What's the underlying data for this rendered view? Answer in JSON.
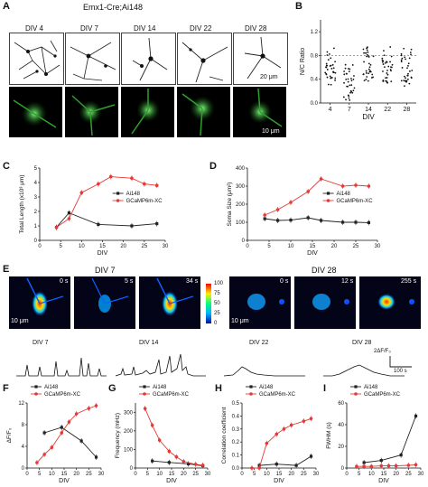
{
  "panels": {
    "A": {
      "letter": "A",
      "title": "Emx1-Cre;Ai148",
      "div_labels": [
        "DIV 4",
        "DIV 7",
        "DIV 14",
        "DIV 22",
        "DIV 28"
      ],
      "scale_top": "20 μm",
      "scale_bottom": "10 μm"
    },
    "B": {
      "letter": "B"
    },
    "C": {
      "letter": "C"
    },
    "D": {
      "letter": "D"
    },
    "E": {
      "letter": "E",
      "div7": "DIV 7",
      "div28": "DIV 28",
      "times7": [
        "0 s",
        "5 s",
        "34 s"
      ],
      "times28": [
        "0 s",
        "12 s",
        "255 s"
      ],
      "colorbar_ticks": [
        "100",
        "75",
        "50",
        "25",
        "0"
      ],
      "scale": "10 μm",
      "trace_labels": [
        "DIV 7",
        "DIV 14",
        "DIV 22",
        "DIV 28"
      ],
      "trace_scale_y": "2ΔF/F₀",
      "trace_scale_x": "100 s"
    },
    "F": {
      "letter": "F"
    },
    "G": {
      "letter": "G"
    },
    "H": {
      "letter": "H"
    },
    "I": {
      "letter": "I"
    }
  },
  "chart_data": [
    {
      "id": "B",
      "type": "scatter",
      "ylabel": "N/C Ratio",
      "xlabel": "DIV",
      "categories": [
        "4",
        "7",
        "14",
        "22",
        "28"
      ],
      "yticks": [
        "0.0",
        "0.4",
        "0.8",
        "1.2"
      ],
      "ylim": [
        0,
        1.4
      ],
      "reference_line": 0.8
    },
    {
      "id": "C",
      "type": "line",
      "xlabel": "DIV",
      "ylabel": "Total Length (x10³ μm)",
      "xlim": [
        0,
        30
      ],
      "ylim": [
        0,
        5
      ],
      "xticks": [
        "0",
        "5",
        "10",
        "15",
        "20",
        "25",
        "30"
      ],
      "yticks": [
        "0",
        "1",
        "2",
        "3",
        "4",
        "5"
      ],
      "legend": [
        "Ai148",
        "GCaMP6m-X_C"
      ],
      "series": [
        {
          "name": "Ai148",
          "color": "#222222",
          "x": [
            4,
            7,
            14,
            22,
            28
          ],
          "y": [
            0.9,
            1.9,
            1.1,
            1.0,
            1.15
          ]
        },
        {
          "name": "GCaMP6m-X_C",
          "color": "#e53935",
          "x": [
            4,
            7,
            10,
            14,
            17,
            22,
            25,
            28
          ],
          "y": [
            0.9,
            1.5,
            3.3,
            3.9,
            4.4,
            4.3,
            3.9,
            3.8
          ]
        }
      ]
    },
    {
      "id": "D",
      "type": "line",
      "xlabel": "DIV",
      "ylabel": "Soma Size (μm²)",
      "xlim": [
        0,
        30
      ],
      "ylim": [
        0,
        400
      ],
      "xticks": [
        "0",
        "5",
        "10",
        "15",
        "20",
        "25",
        "30"
      ],
      "yticks": [
        "0",
        "100",
        "200",
        "300",
        "400"
      ],
      "legend": [
        "Ai148",
        "GCaMP6m-X_C"
      ],
      "series": [
        {
          "name": "Ai148",
          "color": "#222222",
          "x": [
            4,
            7,
            10,
            14,
            17,
            22,
            25,
            28
          ],
          "y": [
            120,
            110,
            112,
            125,
            110,
            100,
            100,
            98
          ]
        },
        {
          "name": "GCaMP6m-X_C",
          "color": "#e53935",
          "x": [
            4,
            7,
            10,
            14,
            17,
            22,
            25,
            28
          ],
          "y": [
            140,
            170,
            210,
            270,
            340,
            300,
            305,
            300
          ]
        }
      ]
    },
    {
      "id": "F",
      "type": "line",
      "xlabel": "DIV",
      "ylabel": "ΔF/F₀",
      "xlim": [
        0,
        30
      ],
      "ylim": [
        0,
        12
      ],
      "xticks": [
        "0",
        "5",
        "10",
        "15",
        "20",
        "25",
        "30"
      ],
      "yticks": [
        "0",
        "4",
        "8",
        "12"
      ],
      "legend": [
        "Ai148",
        "GCaMP6m-X_C"
      ],
      "series": [
        {
          "name": "Ai148",
          "color": "#222222",
          "x": [
            7,
            14,
            22,
            28
          ],
          "y": [
            6.5,
            7.5,
            5.0,
            2.0
          ]
        },
        {
          "name": "GCaMP6m-X_C",
          "color": "#e53935",
          "x": [
            4,
            7,
            10,
            14,
            17,
            20,
            25,
            28
          ],
          "y": [
            1.0,
            2.5,
            3.8,
            6.5,
            8.5,
            10.0,
            11.0,
            11.5
          ]
        }
      ]
    },
    {
      "id": "G",
      "type": "line",
      "xlabel": "DIV",
      "ylabel": "Frequency (mHz)",
      "xlim": [
        0,
        30
      ],
      "ylim": [
        0,
        350
      ],
      "xticks": [
        "0",
        "5",
        "10",
        "15",
        "20",
        "25",
        "30"
      ],
      "yticks": [
        "0",
        "100",
        "200",
        "300"
      ],
      "legend": [
        "Ai148",
        "GCaMP6m-X_C"
      ],
      "series": [
        {
          "name": "Ai148",
          "color": "#222222",
          "x": [
            7,
            14,
            22,
            28
          ],
          "y": [
            38,
            30,
            22,
            12
          ]
        },
        {
          "name": "GCaMP6m-X_C",
          "color": "#e53935",
          "x": [
            4,
            7,
            10,
            14,
            17,
            20,
            25,
            28
          ],
          "y": [
            320,
            230,
            150,
            90,
            60,
            35,
            20,
            15
          ]
        }
      ]
    },
    {
      "id": "H",
      "type": "line",
      "xlabel": "DIV",
      "ylabel": "Correlation coefficient",
      "xlim": [
        0,
        30
      ],
      "ylim": [
        0,
        0.5
      ],
      "xticks": [
        "0",
        "5",
        "10",
        "15",
        "20",
        "25",
        "30"
      ],
      "yticks": [
        "0.0",
        "0.1",
        "0.2",
        "0.3",
        "0.4",
        "0.5"
      ],
      "legend": [
        "Ai148",
        "GCaMP6m-X_C"
      ],
      "series": [
        {
          "name": "Ai148",
          "color": "#222222",
          "x": [
            7,
            14,
            22,
            28
          ],
          "y": [
            0.02,
            0.03,
            0.02,
            0.09
          ]
        },
        {
          "name": "GCaMP6m-X_C",
          "color": "#e53935",
          "x": [
            4,
            7,
            10,
            14,
            17,
            20,
            25,
            28
          ],
          "y": [
            0.0,
            0.0,
            0.19,
            0.26,
            0.3,
            0.33,
            0.36,
            0.38
          ]
        }
      ]
    },
    {
      "id": "I",
      "type": "line",
      "xlabel": "DIV",
      "ylabel": "FWHM (s)",
      "xlim": [
        0,
        30
      ],
      "ylim": [
        0,
        60
      ],
      "xticks": [
        "0",
        "5",
        "10",
        "15",
        "20",
        "25",
        "30"
      ],
      "yticks": [
        "0",
        "20",
        "40",
        "60"
      ],
      "legend": [
        "Ai148",
        "GCaMP6m-X_C"
      ],
      "series": [
        {
          "name": "Ai148",
          "color": "#222222",
          "x": [
            7,
            14,
            22,
            28
          ],
          "y": [
            5,
            7,
            12,
            48
          ]
        },
        {
          "name": "GCaMP6m-X_C",
          "color": "#e53935",
          "x": [
            4,
            7,
            10,
            14,
            17,
            20,
            25,
            28
          ],
          "y": [
            1.5,
            1.5,
            1.5,
            2,
            2,
            2,
            2.5,
            3
          ]
        }
      ]
    }
  ]
}
